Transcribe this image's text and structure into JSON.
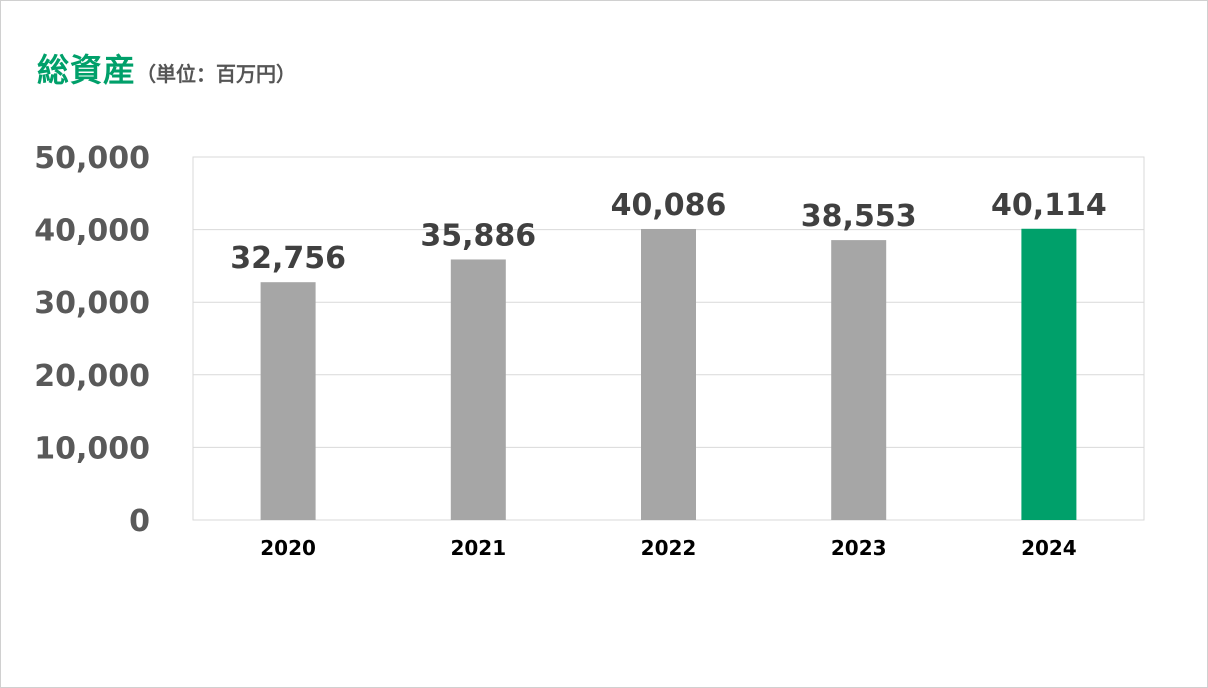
{
  "chart_data": {
    "type": "bar",
    "title": "総資産",
    "subtitle": "（単位：百万円）",
    "categories": [
      "2020",
      "2021",
      "2022",
      "2023",
      "2024"
    ],
    "values": [
      32756,
      35886,
      40086,
      38553,
      40114
    ],
    "value_labels": [
      "32,756",
      "35,886",
      "40,086",
      "38,553",
      "40,114"
    ],
    "ylim": [
      0,
      50000
    ],
    "yticks": [
      0,
      10000,
      20000,
      30000,
      40000,
      50000
    ],
    "ytick_labels": [
      "0",
      "10,000",
      "20,000",
      "30,000",
      "40,000",
      "50,000"
    ],
    "grid": true,
    "colors": {
      "default_bar": "#a6a6a6",
      "highlight_bar": "#00a06a",
      "title": "#00a06a"
    },
    "highlight_category": "2024"
  }
}
